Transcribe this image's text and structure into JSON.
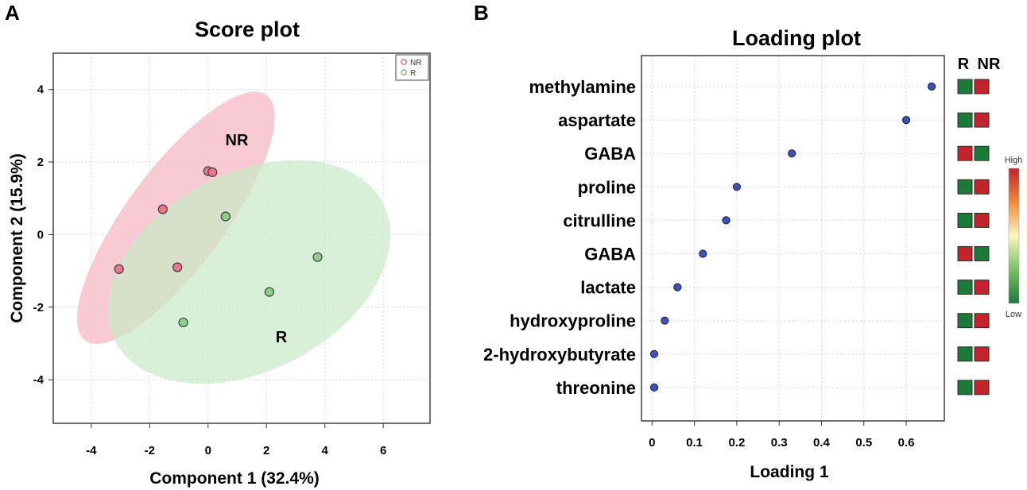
{
  "chart_data": [
    {
      "panel": "A",
      "type": "scatter",
      "title": "Score plot",
      "xlabel": "Component 1 (32.4%)",
      "ylabel": "Component 2 (15.9%)",
      "xlim": [
        -5.3,
        7.6
      ],
      "ylim": [
        -5.2,
        5.0
      ],
      "xticks": [
        -4,
        -2,
        0,
        2,
        4,
        6
      ],
      "yticks": [
        4,
        2,
        0,
        -2,
        -4
      ],
      "legend": {
        "position": "top-right",
        "entries": [
          "NR",
          "R"
        ]
      },
      "group_labels": [
        "NR",
        "R"
      ],
      "series": [
        {
          "name": "NR",
          "color": "#e8788c",
          "fill": "#f7c2cd",
          "points": [
            {
              "x": 0.0,
              "y": 1.75
            },
            {
              "x": 0.15,
              "y": 1.72
            },
            {
              "x": -1.55,
              "y": 0.7
            },
            {
              "x": -1.05,
              "y": -0.9
            },
            {
              "x": -3.05,
              "y": -0.95
            }
          ]
        },
        {
          "name": "R",
          "color": "#8ccf8c",
          "fill": "#c9e8c6",
          "points": [
            {
              "x": 0.6,
              "y": 0.5
            },
            {
              "x": 3.75,
              "y": -0.62
            },
            {
              "x": 2.1,
              "y": -1.58
            },
            {
              "x": -0.85,
              "y": -2.42
            }
          ]
        }
      ]
    },
    {
      "panel": "B",
      "type": "scatter",
      "title": "Loading plot",
      "xlabel": "Loading 1",
      "xlim": [
        -0.025,
        0.69
      ],
      "xticks": [
        0,
        0.1,
        0.2,
        0.3,
        0.4,
        0.5,
        0.6
      ],
      "xtick_labels": [
        "0",
        "0.1",
        "0.2",
        "0.3",
        "0.4",
        "0.5",
        "0.6"
      ],
      "categories": [
        "methylamine",
        "aspartate",
        "GABA",
        "proline",
        "citrulline",
        "GABA",
        "lactate",
        "hydroxyproline",
        "2-hydroxybutyrate",
        "threonine"
      ],
      "values": [
        0.66,
        0.6,
        0.33,
        0.2,
        0.175,
        0.12,
        0.06,
        0.03,
        0.005,
        0.005
      ],
      "point_color": "#3f51b5",
      "heatmap": {
        "columns": [
          "R",
          "NR"
        ],
        "rows": [
          [
            "low",
            "high"
          ],
          [
            "low",
            "high"
          ],
          [
            "high",
            "low"
          ],
          [
            "low",
            "high"
          ],
          [
            "low",
            "high"
          ],
          [
            "high",
            "low"
          ],
          [
            "low",
            "high"
          ],
          [
            "low",
            "high"
          ],
          [
            "low",
            "high"
          ],
          [
            "low",
            "high"
          ]
        ],
        "colors": {
          "high": "#c3232d",
          "low": "#1b7a3a"
        },
        "scale": {
          "high_label": "High",
          "low_label": "Low"
        }
      }
    }
  ]
}
